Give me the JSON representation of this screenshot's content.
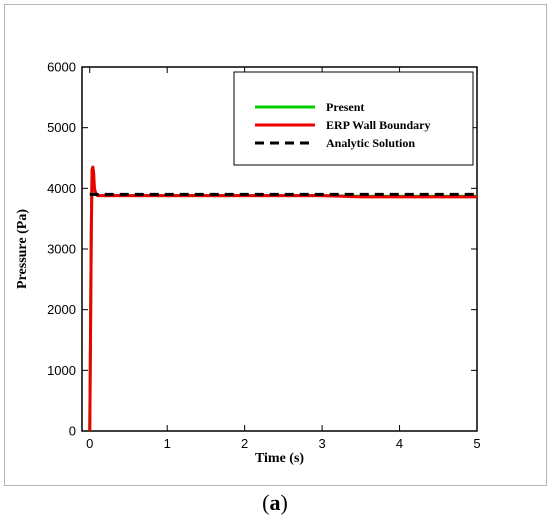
{
  "caption": {
    "open": "(",
    "letter": "a",
    "close": ")"
  },
  "chart_data": {
    "type": "line",
    "xlabel": "Time (s)",
    "ylabel": "Pressure (Pa)",
    "xlim": [
      -0.1,
      5
    ],
    "ylim": [
      0,
      6000
    ],
    "x_ticks": [
      0,
      1,
      2,
      3,
      4,
      5
    ],
    "y_ticks": [
      0,
      1000,
      2000,
      3000,
      4000,
      5000,
      6000
    ],
    "grid": false,
    "legend_position": "top-right",
    "series": [
      {
        "name": "Present",
        "color": "#00cc00",
        "style": "solid",
        "x": [
          0,
          0.01,
          0.02,
          0.03,
          0.04,
          0.05,
          0.06,
          0.08,
          0.1,
          0.5,
          1,
          2,
          3,
          3.5,
          4,
          5
        ],
        "y": [
          0,
          1600,
          3300,
          4300,
          4350,
          4250,
          4000,
          3900,
          3880,
          3880,
          3880,
          3880,
          3880,
          3870,
          3870,
          3870
        ]
      },
      {
        "name": "ERP Wall Boundary",
        "color": "#ee0000",
        "style": "solid",
        "x": [
          0,
          0.01,
          0.02,
          0.03,
          0.04,
          0.05,
          0.06,
          0.08,
          0.1,
          0.5,
          1,
          2,
          3,
          3.5,
          4,
          5
        ],
        "y": [
          0,
          1600,
          3300,
          4300,
          4350,
          4250,
          4000,
          3900,
          3880,
          3880,
          3880,
          3880,
          3880,
          3860,
          3860,
          3860
        ]
      },
      {
        "name": "Analytic Solution",
        "color": "#000000",
        "style": "dashed",
        "x": [
          0,
          5
        ],
        "y": [
          3900,
          3900
        ]
      }
    ]
  }
}
